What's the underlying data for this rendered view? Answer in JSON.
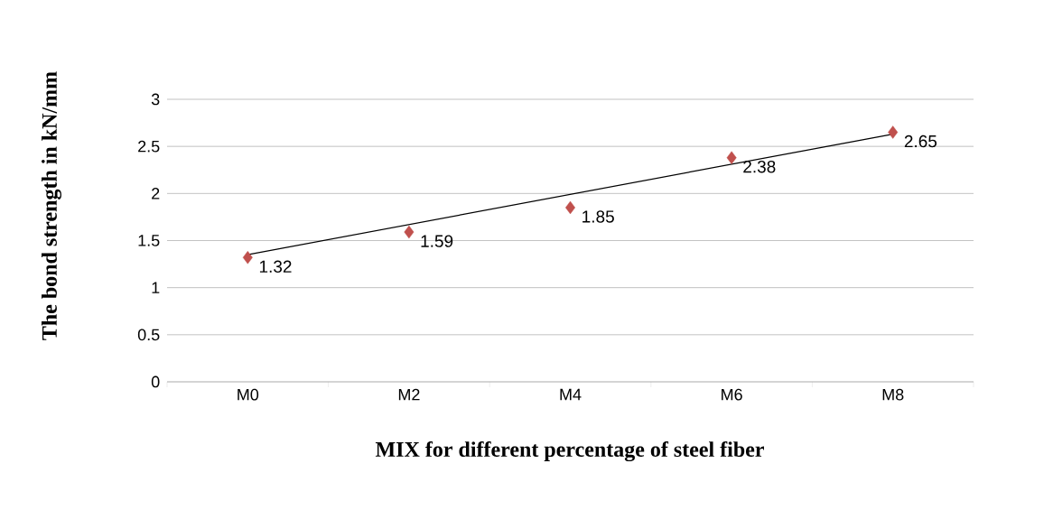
{
  "chart_data": {
    "type": "scatter",
    "xlabel": "MIX for different percentage of steel fiber",
    "ylabel": "The bond strength in kN/mm",
    "categories": [
      "M0",
      "M2",
      "M4",
      "M6",
      "M8"
    ],
    "series": [
      {
        "color": "#c0504d",
        "marker": "diamond",
        "values": [
          1.32,
          1.59,
          1.85,
          2.38,
          2.65
        ],
        "value_labels": [
          "1.32",
          "1.59",
          "1.85",
          "2.38",
          "2.65"
        ]
      },
      {
        "type": "line",
        "color": "#000000",
        "marker": "none",
        "x": [
          "M0",
          "M8"
        ],
        "values": [
          1.35,
          2.63
        ]
      }
    ],
    "ylim": [
      0,
      3
    ],
    "yticks": [
      0,
      0.5,
      1,
      1.5,
      2,
      2.5,
      3
    ],
    "grid": "y"
  }
}
